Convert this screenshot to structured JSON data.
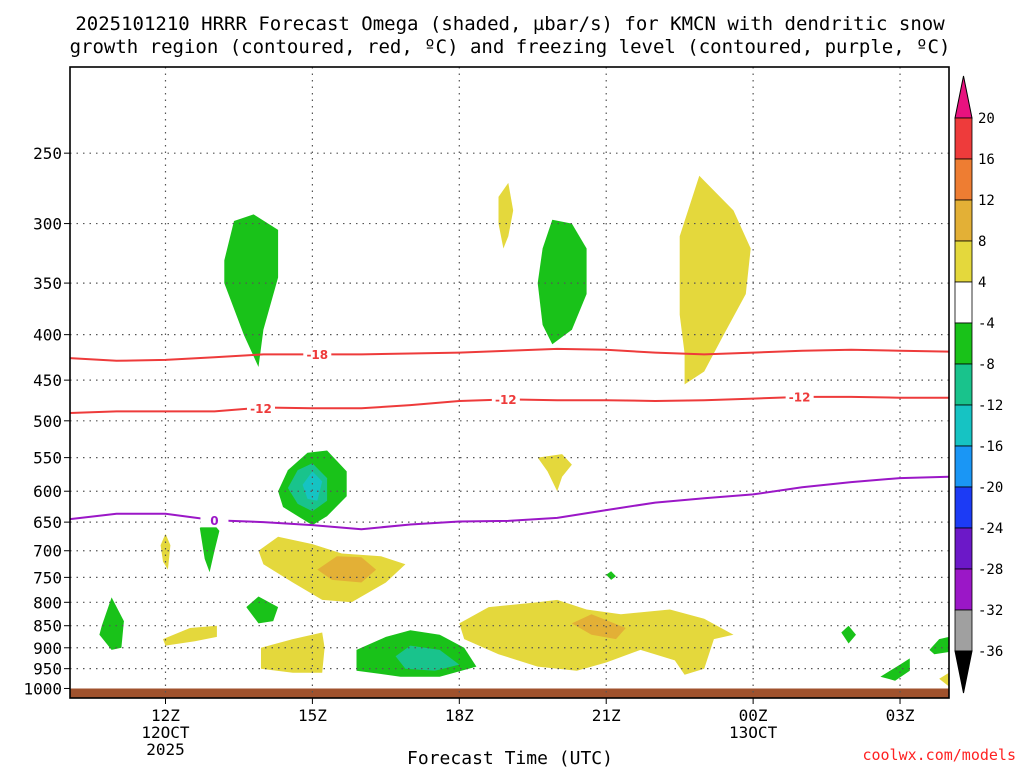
{
  "chart_data": {
    "type": "heatmap",
    "title_line1": "2025101210 HRRR Forecast Omega (shaded, µbar/s) for KMCN with dendritic snow",
    "title_line2": "growth region (contoured, red, ºC) and freezing level (contoured, purple, ºC)",
    "xlabel": "Forecast Time (UTC)",
    "ylabel": "",
    "credit": "coolwx.com/models",
    "x_axis": {
      "range_hours_from_12z": [
        -1.95,
        16.0
      ],
      "ticks": [
        {
          "hour": 0,
          "label": "12Z",
          "sub1": "12OCT",
          "sub2": "2025"
        },
        {
          "hour": 3,
          "label": "15Z",
          "sub1": "",
          "sub2": ""
        },
        {
          "hour": 6,
          "label": "18Z",
          "sub1": "",
          "sub2": ""
        },
        {
          "hour": 9,
          "label": "21Z",
          "sub1": "",
          "sub2": ""
        },
        {
          "hour": 12,
          "label": "00Z",
          "sub1": "13OCT",
          "sub2": ""
        },
        {
          "hour": 15,
          "label": "03Z",
          "sub1": "",
          "sub2": ""
        }
      ]
    },
    "y_axis": {
      "units": "hPa",
      "range": [
        1025,
        200
      ],
      "ticks": [
        250,
        300,
        350,
        400,
        450,
        500,
        550,
        600,
        650,
        700,
        750,
        800,
        850,
        900,
        950,
        1000
      ]
    },
    "colorbar": {
      "ticks": [
        20,
        16,
        12,
        8,
        4,
        -4,
        -8,
        -12,
        -16,
        -20,
        -24,
        -28,
        -32,
        -36
      ],
      "colors": [
        "#e8127f",
        "#ee3b3b",
        "#ee7d32",
        "#e3b036",
        "#e4d83c",
        "#ffffff",
        "#19c219",
        "#19c38c",
        "#16c3c3",
        "#1a96f5",
        "#1c3bf5",
        "#6c18c8",
        "#9b17c7",
        "#a0a0a0",
        "#000000"
      ]
    },
    "series": [
      {
        "name": "-18",
        "color": "#ee3b3b",
        "label": "-18",
        "points": [
          [
            -1.95,
            425
          ],
          [
            -1,
            428
          ],
          [
            0,
            427
          ],
          [
            1,
            424
          ],
          [
            2,
            421
          ],
          [
            3,
            421
          ],
          [
            4,
            421
          ],
          [
            5,
            420
          ],
          [
            6,
            419
          ],
          [
            7,
            417
          ],
          [
            8,
            415
          ],
          [
            9,
            416
          ],
          [
            10,
            419
          ],
          [
            11,
            421
          ],
          [
            12,
            419
          ],
          [
            13,
            417
          ],
          [
            14,
            416
          ],
          [
            15,
            417
          ],
          [
            16,
            418
          ]
        ],
        "label_at": [
          3.1,
          421
        ]
      },
      {
        "name": "-12",
        "color": "#ee3b3b",
        "label": "-12",
        "points": [
          [
            -1.95,
            490
          ],
          [
            -1,
            488
          ],
          [
            0,
            488
          ],
          [
            1,
            488
          ],
          [
            2,
            483
          ],
          [
            3,
            484
          ],
          [
            4,
            484
          ],
          [
            5,
            480
          ],
          [
            6,
            475
          ],
          [
            7,
            473
          ],
          [
            8,
            474
          ],
          [
            9,
            474
          ],
          [
            10,
            475
          ],
          [
            11,
            474
          ],
          [
            12,
            472
          ],
          [
            13,
            470
          ],
          [
            14,
            470
          ],
          [
            15,
            471
          ],
          [
            16,
            471
          ]
        ],
        "label_at": [
          1.95,
          484
        ],
        "label_at_2": [
          6.95,
          473
        ],
        "label_at_3": [
          12.95,
          470
        ]
      },
      {
        "name": "0",
        "color": "#9b17c7",
        "label": "0",
        "points": [
          [
            -1.95,
            645
          ],
          [
            -1,
            636
          ],
          [
            0,
            636
          ],
          [
            1,
            647
          ],
          [
            2,
            650
          ],
          [
            3,
            655
          ],
          [
            4,
            662
          ],
          [
            5,
            654
          ],
          [
            6,
            649
          ],
          [
            7,
            648
          ],
          [
            8,
            643
          ],
          [
            9,
            630
          ],
          [
            10,
            618
          ],
          [
            11,
            611
          ],
          [
            12,
            605
          ],
          [
            13,
            594
          ],
          [
            14,
            586
          ],
          [
            15,
            580
          ],
          [
            16,
            578
          ]
        ],
        "label_at": [
          1,
          647
        ]
      }
    ],
    "shaded_regions": [
      {
        "value": -6,
        "color": "#19c219",
        "points": [
          [
            1.2,
            330
          ],
          [
            1.4,
            298
          ],
          [
            1.8,
            293
          ],
          [
            2.3,
            305
          ],
          [
            2.3,
            345
          ],
          [
            2.0,
            395
          ],
          [
            1.9,
            435
          ],
          [
            1.6,
            400
          ],
          [
            1.2,
            350
          ]
        ]
      },
      {
        "value": -6,
        "color": "#19c219",
        "points": [
          [
            7.7,
            320
          ],
          [
            7.9,
            297
          ],
          [
            8.3,
            300
          ],
          [
            8.6,
            320
          ],
          [
            8.6,
            360
          ],
          [
            8.3,
            395
          ],
          [
            7.9,
            410
          ],
          [
            7.7,
            390
          ],
          [
            7.6,
            350
          ]
        ]
      },
      {
        "value": 6,
        "color": "#e4d83c",
        "points": [
          [
            10.5,
            310
          ],
          [
            10.9,
            265
          ],
          [
            11.6,
            290
          ],
          [
            11.95,
            320
          ],
          [
            11.85,
            360
          ],
          [
            11.4,
            400
          ],
          [
            11.0,
            440
          ],
          [
            10.6,
            455
          ],
          [
            10.6,
            420
          ],
          [
            10.5,
            380
          ]
        ]
      },
      {
        "value": 6,
        "color": "#e4d83c",
        "points": [
          [
            6.8,
            280
          ],
          [
            7.0,
            270
          ],
          [
            7.1,
            290
          ],
          [
            7.0,
            310
          ],
          [
            6.9,
            320
          ],
          [
            6.8,
            300
          ]
        ]
      },
      {
        "value": 6,
        "color": "#e4d83c",
        "points": [
          [
            7.6,
            550
          ],
          [
            8.1,
            545
          ],
          [
            8.3,
            560
          ],
          [
            8.1,
            578
          ],
          [
            8.0,
            600
          ],
          [
            7.8,
            570
          ]
        ]
      },
      {
        "value": -6,
        "color": "#19c219",
        "points": [
          [
            2.3,
            600
          ],
          [
            2.5,
            568
          ],
          [
            2.9,
            543
          ],
          [
            3.3,
            540
          ],
          [
            3.7,
            570
          ],
          [
            3.7,
            608
          ],
          [
            3.3,
            640
          ],
          [
            3.0,
            655
          ],
          [
            2.7,
            640
          ],
          [
            2.4,
            625
          ]
        ]
      },
      {
        "value": -12,
        "color": "#19c38c",
        "points": [
          [
            2.5,
            595
          ],
          [
            2.7,
            568
          ],
          [
            3.0,
            558
          ],
          [
            3.3,
            580
          ],
          [
            3.3,
            615
          ],
          [
            3.0,
            632
          ],
          [
            2.7,
            620
          ]
        ]
      },
      {
        "value": -15,
        "color": "#16c3c3",
        "points": [
          [
            2.8,
            590
          ],
          [
            3.0,
            570
          ],
          [
            3.2,
            585
          ],
          [
            3.1,
            615
          ],
          [
            2.9,
            612
          ]
        ]
      },
      {
        "value": -6,
        "color": "#19c219",
        "points": [
          [
            0.7,
            660
          ],
          [
            0.9,
            645
          ],
          [
            1.1,
            665
          ],
          [
            1.0,
            700
          ],
          [
            0.9,
            740
          ],
          [
            0.8,
            715
          ]
        ]
      },
      {
        "value": 6,
        "color": "#e4d83c",
        "points": [
          [
            -0.1,
            690
          ],
          [
            0.0,
            670
          ],
          [
            0.1,
            690
          ],
          [
            0.05,
            735
          ],
          [
            -0.05,
            720
          ]
        ]
      },
      {
        "value": 6,
        "color": "#e4d83c",
        "points": [
          [
            1.9,
            700
          ],
          [
            2.3,
            675
          ],
          [
            3.0,
            688
          ],
          [
            3.6,
            705
          ],
          [
            4.4,
            710
          ],
          [
            4.9,
            725
          ],
          [
            4.5,
            760
          ],
          [
            3.8,
            800
          ],
          [
            3.2,
            795
          ],
          [
            2.6,
            760
          ],
          [
            2.0,
            725
          ]
        ]
      },
      {
        "value": 10,
        "color": "#e3b036",
        "points": [
          [
            3.1,
            735
          ],
          [
            3.5,
            710
          ],
          [
            4.0,
            712
          ],
          [
            4.3,
            735
          ],
          [
            4.0,
            760
          ],
          [
            3.4,
            755
          ]
        ]
      },
      {
        "value": -6,
        "color": "#19c219",
        "points": [
          [
            9.0,
            745
          ],
          [
            9.1,
            738
          ],
          [
            9.2,
            748
          ],
          [
            9.1,
            755
          ]
        ]
      },
      {
        "value": -6,
        "color": "#19c219",
        "points": [
          [
            -1.3,
            850
          ],
          [
            -1.1,
            790
          ],
          [
            -0.85,
            840
          ],
          [
            -0.9,
            900
          ],
          [
            -1.1,
            905
          ],
          [
            -1.35,
            870
          ]
        ]
      },
      {
        "value": -6,
        "color": "#19c219",
        "points": [
          [
            1.65,
            810
          ],
          [
            1.9,
            788
          ],
          [
            2.3,
            810
          ],
          [
            2.2,
            840
          ],
          [
            1.9,
            845
          ]
        ]
      },
      {
        "value": 6,
        "color": "#e4d83c",
        "points": [
          [
            -0.05,
            880
          ],
          [
            0.5,
            855
          ],
          [
            1.05,
            850
          ],
          [
            1.05,
            875
          ],
          [
            0.6,
            885
          ],
          [
            0.0,
            895
          ]
        ]
      },
      {
        "value": 6,
        "color": "#e4d83c",
        "points": [
          [
            1.95,
            900
          ],
          [
            2.6,
            880
          ],
          [
            3.2,
            865
          ],
          [
            3.25,
            900
          ],
          [
            3.2,
            960
          ],
          [
            2.6,
            960
          ],
          [
            1.95,
            950
          ]
        ]
      },
      {
        "value": -6,
        "color": "#19c219",
        "points": [
          [
            3.9,
            905
          ],
          [
            4.5,
            875
          ],
          [
            5.0,
            860
          ],
          [
            5.6,
            870
          ],
          [
            6.1,
            900
          ],
          [
            6.35,
            945
          ],
          [
            5.6,
            970
          ],
          [
            4.8,
            970
          ],
          [
            3.9,
            955
          ]
        ]
      },
      {
        "value": -12,
        "color": "#19c38c",
        "points": [
          [
            4.7,
            920
          ],
          [
            5.0,
            895
          ],
          [
            5.6,
            905
          ],
          [
            6.0,
            940
          ],
          [
            5.5,
            955
          ],
          [
            4.9,
            950
          ]
        ]
      },
      {
        "value": 6,
        "color": "#e4d83c",
        "points": [
          [
            6.0,
            845
          ],
          [
            6.6,
            810
          ],
          [
            7.6,
            800
          ],
          [
            8.0,
            795
          ],
          [
            8.6,
            815
          ],
          [
            9.3,
            825
          ],
          [
            10.3,
            815
          ],
          [
            11.0,
            835
          ],
          [
            11.6,
            870
          ],
          [
            11.2,
            880
          ],
          [
            11.0,
            950
          ],
          [
            10.6,
            965
          ],
          [
            10.4,
            930
          ],
          [
            9.7,
            905
          ],
          [
            9.0,
            935
          ],
          [
            8.4,
            955
          ],
          [
            7.6,
            945
          ],
          [
            6.8,
            915
          ],
          [
            6.1,
            880
          ]
        ]
      },
      {
        "value": 10,
        "color": "#e3b036",
        "points": [
          [
            8.3,
            845
          ],
          [
            8.7,
            825
          ],
          [
            9.4,
            855
          ],
          [
            9.2,
            880
          ],
          [
            8.7,
            870
          ]
        ]
      },
      {
        "value": -6,
        "color": "#19c219",
        "points": [
          [
            13.8,
            865
          ],
          [
            13.95,
            850
          ],
          [
            14.1,
            870
          ],
          [
            13.95,
            890
          ]
        ]
      },
      {
        "value": -6,
        "color": "#19c219",
        "points": [
          [
            14.6,
            970
          ],
          [
            15.0,
            940
          ],
          [
            15.2,
            925
          ],
          [
            15.2,
            955
          ],
          [
            14.9,
            980
          ]
        ]
      },
      {
        "value": -6,
        "color": "#19c219",
        "points": [
          [
            15.6,
            905
          ],
          [
            15.8,
            880
          ],
          [
            16.0,
            875
          ],
          [
            16.0,
            910
          ],
          [
            15.7,
            915
          ]
        ]
      },
      {
        "value": 6,
        "color": "#e4d83c",
        "points": [
          [
            15.8,
            975
          ],
          [
            16.0,
            960
          ],
          [
            16.0,
            995
          ]
        ]
      }
    ],
    "ground": {
      "from": 1000,
      "to": 1025,
      "color": "#a0522d"
    }
  }
}
